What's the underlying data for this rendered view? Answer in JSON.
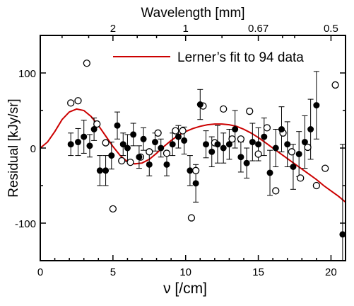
{
  "chart_data": {
    "type": "scatter",
    "title": "",
    "xlabel": "ν [/cm]",
    "ylabel": "Residual [kJy/sr]",
    "top_axis_label": "Wavelength [mm]",
    "xlim": [
      0,
      21
    ],
    "ylim": [
      -150,
      150
    ],
    "x_ticks": [
      "0",
      "5",
      "10",
      "15",
      "20"
    ],
    "y_ticks": [
      "-100",
      "0",
      "100"
    ],
    "top_ticks": [
      {
        "label": "2",
        "nu": 5
      },
      {
        "label": "1",
        "nu": 10
      },
      {
        "label": "0.67",
        "nu": 15
      },
      {
        "label": "0.5",
        "nu": 20
      }
    ],
    "legend": {
      "position": "top-right",
      "entries": [
        {
          "label": "Lerner’s fit to 94 data",
          "color": "#cc0000"
        }
      ]
    },
    "colors": {
      "fit_line": "#cc0000",
      "markers": "#000000"
    },
    "series": [
      {
        "marker": "filled-circle-with-errorbars",
        "points": [
          {
            "x": 2.1,
            "y": 5,
            "err": 15
          },
          {
            "x": 2.6,
            "y": 8,
            "err": 18
          },
          {
            "x": 3.0,
            "y": 15,
            "err": 22
          },
          {
            "x": 3.4,
            "y": 3,
            "err": 15
          },
          {
            "x": 3.7,
            "y": 25,
            "err": 15
          },
          {
            "x": 4.1,
            "y": -30,
            "err": 20
          },
          {
            "x": 4.5,
            "y": -30,
            "err": 20
          },
          {
            "x": 4.9,
            "y": -10,
            "err": 18
          },
          {
            "x": 5.3,
            "y": 30,
            "err": 18
          },
          {
            "x": 5.7,
            "y": 5,
            "err": 15
          },
          {
            "x": 6.0,
            "y": 0,
            "err": 18
          },
          {
            "x": 6.4,
            "y": 18,
            "err": 15
          },
          {
            "x": 6.8,
            "y": -12,
            "err": 15
          },
          {
            "x": 7.1,
            "y": 12,
            "err": 15
          },
          {
            "x": 7.5,
            "y": -22,
            "err": 15
          },
          {
            "x": 7.9,
            "y": 8,
            "err": 12
          },
          {
            "x": 8.3,
            "y": 0,
            "err": 12
          },
          {
            "x": 8.7,
            "y": -22,
            "err": 15
          },
          {
            "x": 9.1,
            "y": 5,
            "err": 15
          },
          {
            "x": 9.5,
            "y": 15,
            "err": 15
          },
          {
            "x": 9.9,
            "y": 10,
            "err": 18
          },
          {
            "x": 10.3,
            "y": -30,
            "err": 20
          },
          {
            "x": 10.7,
            "y": -47,
            "err": 25
          },
          {
            "x": 11.0,
            "y": 58,
            "err": 20
          },
          {
            "x": 11.4,
            "y": 5,
            "err": 18
          },
          {
            "x": 11.8,
            "y": -5,
            "err": 20
          },
          {
            "x": 12.2,
            "y": 5,
            "err": 25
          },
          {
            "x": 12.6,
            "y": 0,
            "err": 20
          },
          {
            "x": 13.0,
            "y": 5,
            "err": 20
          },
          {
            "x": 13.4,
            "y": 25,
            "err": 25
          },
          {
            "x": 13.8,
            "y": -12,
            "err": 20
          },
          {
            "x": 14.2,
            "y": -20,
            "err": 20
          },
          {
            "x": 14.6,
            "y": 8,
            "err": 25
          },
          {
            "x": 15.0,
            "y": 5,
            "err": 22
          },
          {
            "x": 15.4,
            "y": 15,
            "err": 25
          },
          {
            "x": 15.8,
            "y": -33,
            "err": 30
          },
          {
            "x": 16.2,
            "y": 0,
            "err": 25
          },
          {
            "x": 16.6,
            "y": 25,
            "err": 30
          },
          {
            "x": 17.0,
            "y": 5,
            "err": 30
          },
          {
            "x": 17.4,
            "y": -25,
            "err": 30
          },
          {
            "x": 17.8,
            "y": -8,
            "err": 30
          },
          {
            "x": 18.2,
            "y": 8,
            "err": 35
          },
          {
            "x": 18.6,
            "y": 25,
            "err": 40
          },
          {
            "x": 19.0,
            "y": 57,
            "err": 45
          },
          {
            "x": 20.8,
            "y": -115,
            "err": 120
          }
        ]
      },
      {
        "marker": "open-circle",
        "points": [
          {
            "x": 2.1,
            "y": 60
          },
          {
            "x": 2.6,
            "y": 63
          },
          {
            "x": 3.2,
            "y": 113
          },
          {
            "x": 3.9,
            "y": 32
          },
          {
            "x": 4.5,
            "y": 7
          },
          {
            "x": 5.0,
            "y": -81
          },
          {
            "x": 5.6,
            "y": -17
          },
          {
            "x": 6.2,
            "y": -19
          },
          {
            "x": 6.9,
            "y": -12
          },
          {
            "x": 7.5,
            "y": -5
          },
          {
            "x": 8.1,
            "y": 20
          },
          {
            "x": 8.7,
            "y": -7
          },
          {
            "x": 9.3,
            "y": 23
          },
          {
            "x": 9.8,
            "y": 23
          },
          {
            "x": 10.4,
            "y": -93
          },
          {
            "x": 10.7,
            "y": -30
          },
          {
            "x": 11.2,
            "y": 56
          },
          {
            "x": 12.0,
            "y": 7
          },
          {
            "x": 12.6,
            "y": 52
          },
          {
            "x": 13.2,
            "y": 12
          },
          {
            "x": 13.8,
            "y": 12
          },
          {
            "x": 14.4,
            "y": 49
          },
          {
            "x": 15.0,
            "y": -8
          },
          {
            "x": 15.6,
            "y": 27
          },
          {
            "x": 16.2,
            "y": -57
          },
          {
            "x": 16.7,
            "y": 20
          },
          {
            "x": 17.3,
            "y": -5
          },
          {
            "x": 17.9,
            "y": -40
          },
          {
            "x": 18.4,
            "y": 1
          },
          {
            "x": 19.0,
            "y": -50
          },
          {
            "x": 19.6,
            "y": -27
          },
          {
            "x": 20.3,
            "y": 84
          }
        ]
      },
      {
        "name": "Lerner’s fit to 94 data",
        "marker": "line",
        "x": [
          0,
          0.5,
          1,
          1.5,
          2,
          2.5,
          3,
          3.5,
          4,
          4.5,
          5,
          5.5,
          6,
          6.5,
          7,
          7.5,
          8,
          8.5,
          9,
          9.5,
          10,
          10.5,
          11,
          11.5,
          12,
          12.5,
          13,
          13.5,
          14,
          14.5,
          15,
          15.5,
          16,
          16.5,
          17,
          17.5,
          18,
          18.5,
          19,
          19.5,
          20,
          20.5,
          21
        ],
        "values": [
          0,
          8,
          22,
          38,
          48,
          52,
          50,
          42,
          30,
          16,
          2,
          -10,
          -18,
          -21,
          -20,
          -15,
          -7,
          2,
          10,
          17,
          22,
          26,
          29,
          31,
          32,
          32,
          31,
          29,
          25,
          20,
          14,
          7,
          0,
          -7,
          -14,
          -21,
          -28,
          -35,
          -42,
          -50,
          -57,
          -64,
          -72
        ]
      }
    ]
  }
}
